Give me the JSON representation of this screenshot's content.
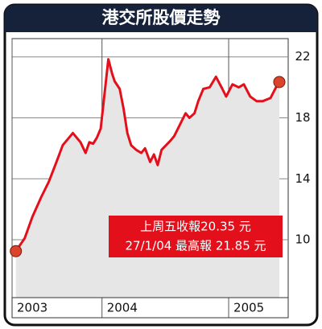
{
  "chart_data": {
    "type": "line",
    "title": "港交所股價走勢",
    "series": [
      {
        "color": "#e3101c",
        "x": [
          2003.32,
          2003.39,
          2003.45,
          2003.52,
          2003.58,
          2003.64,
          2003.69,
          2003.74,
          2003.77,
          2003.8,
          2003.83,
          2003.87,
          2003.9,
          2003.93,
          2003.96,
          2003.99,
          2004.05,
          2004.08,
          2004.1,
          2004.14,
          2004.17,
          2004.2,
          2004.23,
          2004.27,
          2004.31,
          2004.34,
          2004.38,
          2004.41,
          2004.44,
          2004.47,
          2004.54,
          2004.57,
          2004.6,
          2004.63,
          2004.66,
          2004.69,
          2004.73,
          2004.76,
          2004.8,
          2004.85,
          2004.9,
          2004.95,
          2004.98,
          2005.03,
          2005.08,
          2005.12,
          2005.17,
          2005.22,
          2005.27,
          2005.33,
          2005.38,
          2005.4
        ],
        "values": [
          9.25,
          10.1,
          11.5,
          12.8,
          13.8,
          15.1,
          16.2,
          16.7,
          17.0,
          16.7,
          16.4,
          15.7,
          16.4,
          16.3,
          16.7,
          17.3,
          21.85,
          20.9,
          20.4,
          19.9,
          18.6,
          17.0,
          16.2,
          15.9,
          15.7,
          16.0,
          15.1,
          15.6,
          14.9,
          15.9,
          16.5,
          16.8,
          17.3,
          17.8,
          18.3,
          18.0,
          18.3,
          19.1,
          19.9,
          20.0,
          20.7,
          19.9,
          19.4,
          20.2,
          20.0,
          20.2,
          19.4,
          19.1,
          19.1,
          19.3,
          20.1,
          20.35
        ]
      }
    ],
    "xlim": [
      2003.29,
      2005.47
    ],
    "xticks": [
      {
        "value": 2003.29,
        "label": "2003"
      },
      2004,
      2005
    ],
    "ylim": [
      6.2,
      23.2
    ],
    "yticks": [
      10,
      14,
      18,
      22
    ],
    "grid": true,
    "annotations": [
      "上周五收報20.35 元",
      "27/1/04 最高報 21.85 元"
    ]
  }
}
